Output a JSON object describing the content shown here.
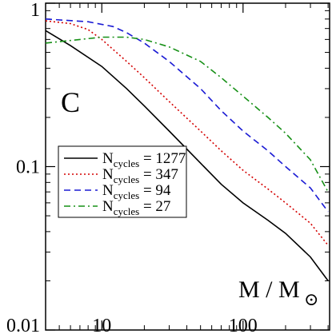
{
  "chart_data": {
    "type": "line",
    "panel_label": "C",
    "xlabel": {
      "main": "M / M",
      "sub": "⊙"
    },
    "ylabel": "",
    "xscale": "log",
    "yscale": "log",
    "xlim": [
      4,
      410
    ],
    "ylim": [
      0.01,
      1
    ],
    "xticks": [
      {
        "value": 10,
        "label": "10"
      },
      {
        "value": 100,
        "label": "100"
      }
    ],
    "yticks": [
      {
        "value": 0.01,
        "label": "0.01"
      },
      {
        "value": 0.1,
        "label": "0.1"
      },
      {
        "value": 1,
        "label": "1"
      }
    ],
    "grid": false,
    "legend_position": "middle-left",
    "series": [
      {
        "name": "N",
        "sub": "cycles",
        "value": "= 1277",
        "color": "#000000",
        "dash": "solid",
        "points": [
          [
            4,
            0.68
          ],
          [
            6,
            0.55
          ],
          [
            10,
            0.41
          ],
          [
            15,
            0.3
          ],
          [
            20,
            0.235
          ],
          [
            30,
            0.165
          ],
          [
            50,
            0.105
          ],
          [
            70,
            0.078
          ],
          [
            100,
            0.06
          ],
          [
            150,
            0.047
          ],
          [
            200,
            0.039
          ],
          [
            300,
            0.028
          ],
          [
            400,
            0.02
          ]
        ]
      },
      {
        "name": "N",
        "sub": "cycles",
        "value": "= 347",
        "color": "#d40000",
        "dash": "dotted",
        "points": [
          [
            4,
            0.78
          ],
          [
            6,
            0.75
          ],
          [
            8,
            0.69
          ],
          [
            10,
            0.6
          ],
          [
            15,
            0.44
          ],
          [
            20,
            0.35
          ],
          [
            30,
            0.25
          ],
          [
            50,
            0.165
          ],
          [
            70,
            0.125
          ],
          [
            100,
            0.095
          ],
          [
            150,
            0.073
          ],
          [
            200,
            0.06
          ],
          [
            300,
            0.045
          ],
          [
            400,
            0.033
          ]
        ]
      },
      {
        "name": "N",
        "sub": "cycles",
        "value": "= 94",
        "color": "#1a1ad4",
        "dash": "dashed",
        "points": [
          [
            4,
            0.8
          ],
          [
            8,
            0.77
          ],
          [
            12,
            0.72
          ],
          [
            15,
            0.66
          ],
          [
            20,
            0.57
          ],
          [
            30,
            0.44
          ],
          [
            50,
            0.3
          ],
          [
            70,
            0.22
          ],
          [
            100,
            0.165
          ],
          [
            150,
            0.125
          ],
          [
            200,
            0.1
          ],
          [
            300,
            0.074
          ],
          [
            400,
            0.053
          ]
        ]
      },
      {
        "name": "N",
        "sub": "cycles",
        "value": "= 27",
        "color": "#169016",
        "dash": "dashdot",
        "points": [
          [
            4,
            0.57
          ],
          [
            7,
            0.6
          ],
          [
            10,
            0.62
          ],
          [
            15,
            0.62
          ],
          [
            20,
            0.6
          ],
          [
            30,
            0.54
          ],
          [
            50,
            0.44
          ],
          [
            70,
            0.35
          ],
          [
            100,
            0.27
          ],
          [
            150,
            0.2
          ],
          [
            200,
            0.16
          ],
          [
            300,
            0.11
          ],
          [
            400,
            0.07
          ]
        ]
      }
    ]
  }
}
